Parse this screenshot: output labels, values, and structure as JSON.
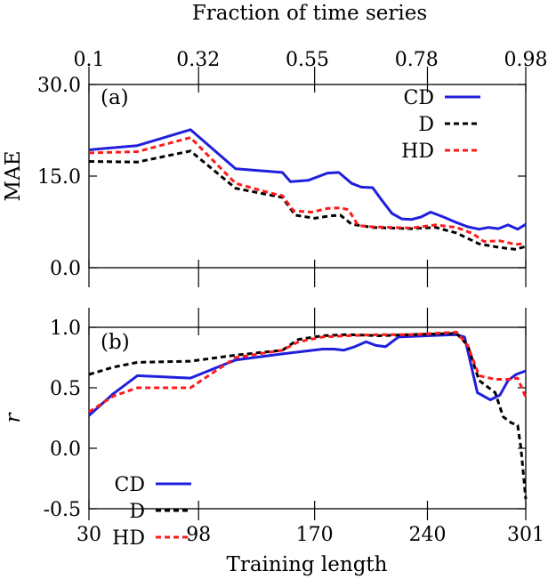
{
  "top_axis": {
    "label": "Fraction of time series",
    "ticks": [
      "0.1",
      "0.32",
      "0.55",
      "0.78",
      "0.98"
    ]
  },
  "chart_data": [
    {
      "type": "line",
      "panel_label": "(a)",
      "xlabel": "",
      "ylabel": "MAE",
      "xlim": [
        30,
        301
      ],
      "ylim": [
        0,
        30
      ],
      "x_ticks": [
        30,
        98,
        170,
        240,
        301
      ],
      "y_ticks": [
        "0.0",
        "15.0",
        "30.0"
      ],
      "y_tick_values": [
        0,
        15,
        30
      ],
      "legend_position": "top-right",
      "series": [
        {
          "name": "CD",
          "color": "#1f1fdc",
          "style": "solid",
          "points": [
            [
              30,
              19.3
            ],
            [
              60,
              20.0
            ],
            [
              93,
              22.6
            ],
            [
              121,
              16.2
            ],
            [
              150,
              15.6
            ],
            [
              155,
              14.1
            ],
            [
              166,
              14.3
            ],
            [
              178,
              15.5
            ],
            [
              185,
              15.6
            ],
            [
              193,
              13.8
            ],
            [
              199,
              13.2
            ],
            [
              206,
              13.1
            ],
            [
              211,
              11.3
            ],
            [
              218,
              8.9
            ],
            [
              224,
              8.0
            ],
            [
              230,
              7.9
            ],
            [
              236,
              8.3
            ],
            [
              242,
              9.1
            ],
            [
              250,
              8.3
            ],
            [
              258,
              7.4
            ],
            [
              265,
              6.7
            ],
            [
              272,
              6.3
            ],
            [
              278,
              6.6
            ],
            [
              284,
              6.4
            ],
            [
              290,
              7.0
            ],
            [
              296,
              6.3
            ],
            [
              301,
              7.1
            ]
          ]
        },
        {
          "name": "D",
          "color": "#000000",
          "style": "dashed",
          "points": [
            [
              30,
              17.4
            ],
            [
              60,
              17.3
            ],
            [
              93,
              19.1
            ],
            [
              121,
              13.0
            ],
            [
              150,
              11.5
            ],
            [
              158,
              8.6
            ],
            [
              170,
              8.1
            ],
            [
              180,
              8.5
            ],
            [
              186,
              8.6
            ],
            [
              193,
              7.1
            ],
            [
              206,
              6.6
            ],
            [
              230,
              6.4
            ],
            [
              245,
              6.6
            ],
            [
              258,
              5.7
            ],
            [
              272,
              3.9
            ],
            [
              285,
              3.3
            ],
            [
              295,
              3.0
            ],
            [
              301,
              3.5
            ]
          ]
        },
        {
          "name": "HD",
          "color": "#ff1a1a",
          "style": "dashed",
          "points": [
            [
              30,
              18.8
            ],
            [
              60,
              19.0
            ],
            [
              93,
              21.3
            ],
            [
              121,
              13.8
            ],
            [
              143,
              12.2
            ],
            [
              150,
              11.8
            ],
            [
              157,
              9.3
            ],
            [
              168,
              9.1
            ],
            [
              178,
              9.7
            ],
            [
              186,
              9.8
            ],
            [
              191,
              9.5
            ],
            [
              197,
              6.9
            ],
            [
              206,
              6.7
            ],
            [
              230,
              6.5
            ],
            [
              245,
              7.0
            ],
            [
              258,
              6.6
            ],
            [
              268,
              5.6
            ],
            [
              275,
              4.3
            ],
            [
              285,
              4.4
            ],
            [
              295,
              3.8
            ],
            [
              301,
              4.0
            ]
          ]
        }
      ]
    },
    {
      "type": "line",
      "panel_label": "(b)",
      "xlabel": "Training length",
      "ylabel": "r",
      "xlim": [
        30,
        301
      ],
      "ylim": [
        -0.5,
        1.0
      ],
      "x_ticks": [
        30,
        98,
        170,
        240,
        301
      ],
      "y_ticks": [
        "-0.5",
        "0.0",
        "0.5",
        "1.0"
      ],
      "y_tick_values": [
        -0.5,
        0,
        0.5,
        1.0
      ],
      "legend_position": "bottom-left",
      "series": [
        {
          "name": "CD",
          "color": "#1f1fdc",
          "style": "solid",
          "points": [
            [
              30,
              0.27
            ],
            [
              45,
              0.45
            ],
            [
              60,
              0.6
            ],
            [
              93,
              0.58
            ],
            [
              121,
              0.73
            ],
            [
              150,
              0.78
            ],
            [
              175,
              0.82
            ],
            [
              182,
              0.82
            ],
            [
              188,
              0.81
            ],
            [
              195,
              0.84
            ],
            [
              202,
              0.88
            ],
            [
              208,
              0.85
            ],
            [
              214,
              0.84
            ],
            [
              222,
              0.92
            ],
            [
              240,
              0.93
            ],
            [
              258,
              0.94
            ],
            [
              263,
              0.92
            ],
            [
              266,
              0.75
            ],
            [
              271,
              0.46
            ],
            [
              279,
              0.4
            ],
            [
              285,
              0.44
            ],
            [
              290,
              0.56
            ],
            [
              295,
              0.61
            ],
            [
              301,
              0.64
            ]
          ]
        },
        {
          "name": "D",
          "color": "#000000",
          "style": "dashed",
          "points": [
            [
              30,
              0.61
            ],
            [
              45,
              0.67
            ],
            [
              60,
              0.71
            ],
            [
              93,
              0.72
            ],
            [
              121,
              0.77
            ],
            [
              150,
              0.81
            ],
            [
              160,
              0.9
            ],
            [
              175,
              0.93
            ],
            [
              190,
              0.94
            ],
            [
              210,
              0.93
            ],
            [
              230,
              0.94
            ],
            [
              258,
              0.95
            ],
            [
              265,
              0.85
            ],
            [
              272,
              0.56
            ],
            [
              282,
              0.46
            ],
            [
              287,
              0.26
            ],
            [
              292,
              0.21
            ],
            [
              296,
              0.19
            ],
            [
              298,
              0.0
            ],
            [
              301,
              -0.42
            ]
          ]
        },
        {
          "name": "HD",
          "color": "#ff1a1a",
          "style": "dashed",
          "points": [
            [
              30,
              0.3
            ],
            [
              45,
              0.43
            ],
            [
              60,
              0.5
            ],
            [
              93,
              0.5
            ],
            [
              121,
              0.75
            ],
            [
              150,
              0.81
            ],
            [
              160,
              0.88
            ],
            [
              175,
              0.92
            ],
            [
              190,
              0.93
            ],
            [
              210,
              0.94
            ],
            [
              230,
              0.94
            ],
            [
              258,
              0.96
            ],
            [
              265,
              0.85
            ],
            [
              272,
              0.6
            ],
            [
              282,
              0.57
            ],
            [
              290,
              0.57
            ],
            [
              296,
              0.58
            ],
            [
              301,
              0.42
            ]
          ]
        }
      ]
    }
  ]
}
